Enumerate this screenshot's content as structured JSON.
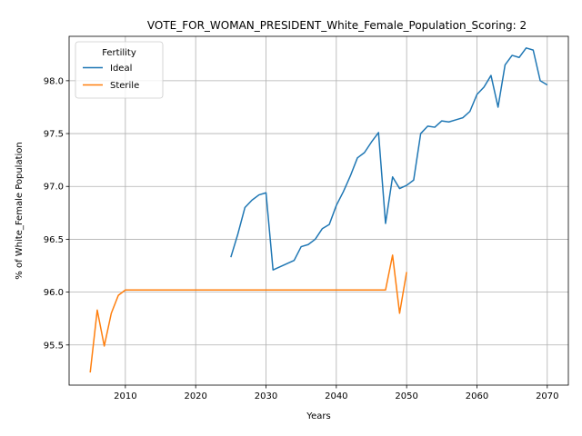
{
  "chart_data": {
    "type": "line",
    "title": "VOTE_FOR_WOMAN_PRESIDENT_White_Female_Population_Scoring: 2",
    "xlabel": "Years",
    "ylabel": "% of White_Female Population",
    "xlim": [
      2002,
      2073
    ],
    "ylim": [
      95.12,
      98.42
    ],
    "xticks": [
      2010,
      2020,
      2030,
      2040,
      2050,
      2060,
      2070
    ],
    "yticks": [
      95.5,
      96.0,
      96.5,
      97.0,
      97.5,
      98.0
    ],
    "grid": true,
    "legend": {
      "title": "Fertility",
      "placement": "top-left"
    },
    "series": [
      {
        "name": "Ideal",
        "color": "#1f77b4",
        "points": [
          [
            2025,
            96.33
          ],
          [
            2026,
            96.55
          ],
          [
            2027,
            96.8
          ],
          [
            2028,
            96.87
          ],
          [
            2029,
            96.92
          ],
          [
            2030,
            96.94
          ],
          [
            2031,
            96.21
          ],
          [
            2032,
            96.24
          ],
          [
            2033,
            96.27
          ],
          [
            2034,
            96.3
          ],
          [
            2035,
            96.43
          ],
          [
            2036,
            96.45
          ],
          [
            2037,
            96.5
          ],
          [
            2038,
            96.6
          ],
          [
            2039,
            96.64
          ],
          [
            2040,
            96.82
          ],
          [
            2041,
            96.95
          ],
          [
            2042,
            97.1
          ],
          [
            2043,
            97.27
          ],
          [
            2044,
            97.32
          ],
          [
            2045,
            97.42
          ],
          [
            2046,
            97.51
          ],
          [
            2047,
            96.65
          ],
          [
            2048,
            97.09
          ],
          [
            2049,
            96.98
          ],
          [
            2050,
            97.01
          ],
          [
            2051,
            97.06
          ],
          [
            2052,
            97.5
          ],
          [
            2053,
            97.57
          ],
          [
            2054,
            97.56
          ],
          [
            2055,
            97.62
          ],
          [
            2056,
            97.61
          ],
          [
            2057,
            97.63
          ],
          [
            2058,
            97.65
          ],
          [
            2059,
            97.71
          ],
          [
            2060,
            97.87
          ],
          [
            2061,
            97.94
          ],
          [
            2062,
            98.05
          ],
          [
            2063,
            97.75
          ],
          [
            2064,
            98.15
          ],
          [
            2065,
            98.24
          ],
          [
            2066,
            98.22
          ],
          [
            2067,
            98.31
          ],
          [
            2068,
            98.29
          ],
          [
            2069,
            98.0
          ],
          [
            2070,
            97.96
          ]
        ]
      },
      {
        "name": "Sterile",
        "color": "#ff7f0e",
        "points": [
          [
            2005,
            95.24
          ],
          [
            2006,
            95.83
          ],
          [
            2007,
            95.49
          ],
          [
            2008,
            95.8
          ],
          [
            2009,
            95.97
          ],
          [
            2010,
            96.02
          ],
          [
            2011,
            96.02
          ],
          [
            2012,
            96.02
          ],
          [
            2013,
            96.02
          ],
          [
            2014,
            96.02
          ],
          [
            2015,
            96.02
          ],
          [
            2016,
            96.02
          ],
          [
            2017,
            96.02
          ],
          [
            2018,
            96.02
          ],
          [
            2019,
            96.02
          ],
          [
            2020,
            96.02
          ],
          [
            2021,
            96.02
          ],
          [
            2022,
            96.02
          ],
          [
            2023,
            96.02
          ],
          [
            2024,
            96.02
          ],
          [
            2025,
            96.02
          ],
          [
            2026,
            96.02
          ],
          [
            2027,
            96.02
          ],
          [
            2028,
            96.02
          ],
          [
            2029,
            96.02
          ],
          [
            2030,
            96.02
          ],
          [
            2031,
            96.02
          ],
          [
            2032,
            96.02
          ],
          [
            2033,
            96.02
          ],
          [
            2034,
            96.02
          ],
          [
            2035,
            96.02
          ],
          [
            2036,
            96.02
          ],
          [
            2037,
            96.02
          ],
          [
            2038,
            96.02
          ],
          [
            2039,
            96.02
          ],
          [
            2040,
            96.02
          ],
          [
            2041,
            96.02
          ],
          [
            2042,
            96.02
          ],
          [
            2043,
            96.02
          ],
          [
            2044,
            96.02
          ],
          [
            2045,
            96.02
          ],
          [
            2046,
            96.02
          ],
          [
            2047,
            96.02
          ],
          [
            2048,
            96.35
          ],
          [
            2049,
            95.8
          ],
          [
            2050,
            96.19
          ]
        ]
      }
    ]
  }
}
